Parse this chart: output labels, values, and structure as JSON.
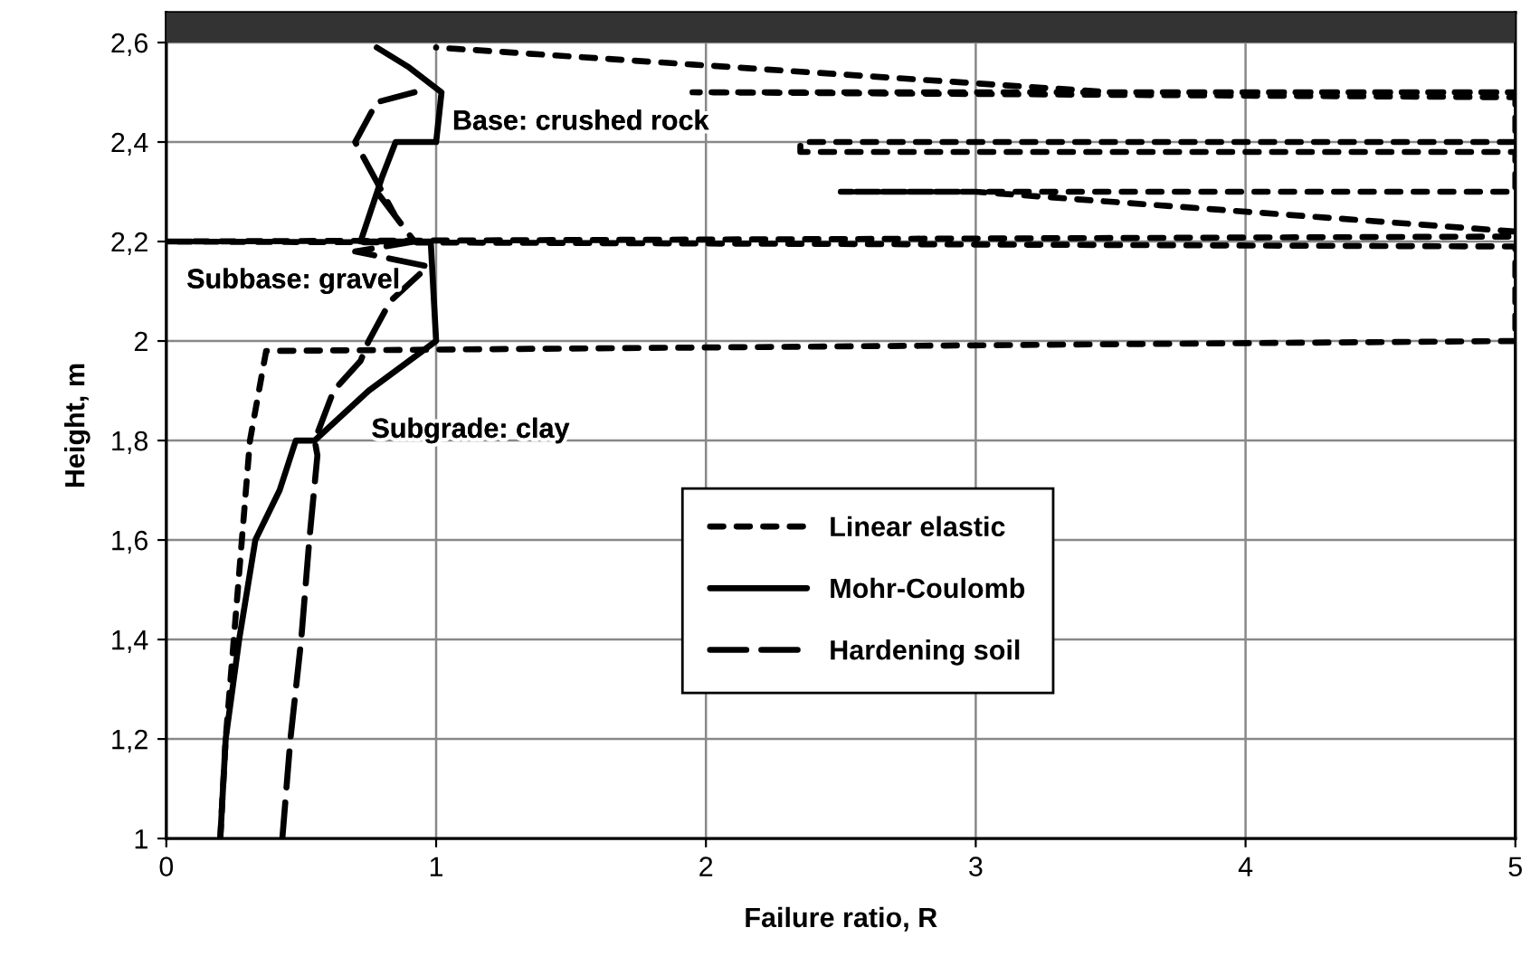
{
  "chart_data": {
    "type": "line",
    "xlabel": "Failure ratio, R",
    "ylabel": "Height, m",
    "xlim": [
      0,
      5
    ],
    "xticks": [
      0,
      1,
      2,
      3,
      4,
      5
    ],
    "ylim": [
      1,
      2.66
    ],
    "yticks": [
      1,
      {
        "value": 1.2,
        "label": "1,2"
      },
      {
        "value": 1.4,
        "label": "1,4"
      },
      {
        "value": 1.6,
        "label": "1,6"
      },
      {
        "value": 1.8,
        "label": "1,8"
      },
      2,
      {
        "value": 2.2,
        "label": "2,2"
      },
      {
        "value": 2.4,
        "label": "2,4"
      },
      {
        "value": 2.6,
        "label": "2,6"
      }
    ],
    "grid": true,
    "legend": "center",
    "marker": "none",
    "bands": [
      {
        "axis": "y",
        "from": 2.6,
        "to": 2.66,
        "color": "#333333"
      }
    ],
    "annotations": [
      "Base: crushed rock",
      "Subbase: gravel",
      "Subgrade: clay"
    ],
    "series": [
      {
        "name": "Linear elastic",
        "color": "#000000",
        "line_style": "dotted",
        "x": [
          0.2,
          0.22,
          0.25,
          0.28,
          0.31,
          0.37,
          5,
          5,
          0,
          5,
          5,
          3.0,
          2.5,
          5,
          5,
          2.35,
          2.35,
          5,
          5,
          1.95,
          5,
          3.5,
          1.0
        ],
        "values": [
          1.0,
          1.2,
          1.4,
          1.6,
          1.8,
          1.98,
          2.0,
          2.19,
          2.2,
          2.21,
          2.22,
          2.3,
          2.3,
          2.3,
          2.38,
          2.38,
          2.4,
          2.4,
          2.49,
          2.5,
          2.5,
          2.5,
          2.59
        ]
      },
      {
        "name": "Mohr-Coulomb",
        "color": "#000000",
        "line_style": "solid",
        "x": [
          0.2,
          0.22,
          0.27,
          0.33,
          0.42,
          0.48,
          0.55,
          0.75,
          1.0,
          0.98,
          0.72,
          0.8,
          0.85,
          1.0,
          1.02,
          0.9,
          0.78
        ],
        "values": [
          1.0,
          1.2,
          1.4,
          1.6,
          1.7,
          1.8,
          1.8,
          1.9,
          2.0,
          2.2,
          2.2,
          2.33,
          2.4,
          2.4,
          2.5,
          2.55,
          2.59
        ]
      },
      {
        "name": "Hardening soil",
        "color": "#000000",
        "line_style": "dashed",
        "x": [
          0.43,
          0.46,
          0.5,
          0.53,
          0.56,
          0.55,
          0.62,
          0.72,
          0.75,
          0.83,
          0.97,
          0.7,
          0.92,
          0.78,
          0.85,
          0.7,
          0.78,
          0.92
        ],
        "values": [
          1.0,
          1.2,
          1.4,
          1.6,
          1.77,
          1.8,
          1.9,
          1.96,
          2.0,
          2.08,
          2.15,
          2.18,
          2.2,
          2.3,
          2.25,
          2.4,
          2.48,
          2.5
        ]
      }
    ]
  }
}
